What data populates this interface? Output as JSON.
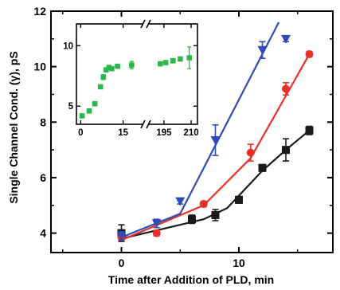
{
  "chart_data": [
    {
      "type": "scatter",
      "title": "",
      "xlabel": "Time after Addition of PLD, min",
      "ylabel": "Single Channel Cond. (γ), pS",
      "xlim": [
        -6,
        18
      ],
      "ylim": [
        3.3,
        12
      ],
      "x_ticks": [
        "0",
        "10"
      ],
      "y_ticks": [
        "4",
        "6",
        "8",
        "10",
        "12"
      ],
      "grid": false,
      "legend": "none",
      "series": [
        {
          "color": "#1a1a1a",
          "marker": "square",
          "points": [
            {
              "x": 0,
              "y": 4.0,
              "err": 0.3
            },
            {
              "x": 6,
              "y": 4.5,
              "err": 0.15
            },
            {
              "x": 8,
              "y": 4.65,
              "err": 0.2
            },
            {
              "x": 10,
              "y": 5.2,
              "err": 0.12
            },
            {
              "x": 12,
              "y": 6.35,
              "err": 0.12
            },
            {
              "x": 14,
              "y": 7.0,
              "err": 0.4
            },
            {
              "x": 16,
              "y": 7.7,
              "err": 0.15
            }
          ],
          "line": [
            [
              0,
              3.8
            ],
            [
              7,
              4.5
            ],
            [
              9,
              4.9
            ],
            [
              12,
              6.25
            ],
            [
              14,
              7.0
            ],
            [
              16,
              7.7
            ]
          ]
        },
        {
          "color": "#e8302b",
          "marker": "circle",
          "points": [
            {
              "x": 0,
              "y": 3.85,
              "err": 0.1
            },
            {
              "x": 3,
              "y": 4.0,
              "err": 0.1
            },
            {
              "x": 7,
              "y": 5.05,
              "err": 0.1
            },
            {
              "x": 11,
              "y": 6.9,
              "err": 0.3
            },
            {
              "x": 14,
              "y": 9.2,
              "err": 0.22
            },
            {
              "x": 16,
              "y": 10.45,
              "err": 0.1
            }
          ],
          "line": [
            [
              0,
              3.75
            ],
            [
              7,
              5.0
            ],
            [
              11,
              6.7
            ],
            [
              16,
              10.45
            ]
          ]
        },
        {
          "color": "#2e4bb8",
          "marker": "triangle-down",
          "points": [
            {
              "x": 0,
              "y": 3.9,
              "err": 0.15
            },
            {
              "x": 3,
              "y": 4.35,
              "err": 0.15
            },
            {
              "x": 5,
              "y": 5.15,
              "err": 0.1
            },
            {
              "x": 8,
              "y": 7.35,
              "err": 0.55
            },
            {
              "x": 12,
              "y": 10.6,
              "err": 0.3
            },
            {
              "x": 14,
              "y": 11.0,
              "err": 0.1
            }
          ],
          "line": [
            [
              0,
              3.85
            ],
            [
              5,
              4.7
            ],
            [
              13.4,
              11.6
            ]
          ]
        }
      ]
    },
    {
      "type": "scatter",
      "title": "",
      "xlabel": "",
      "ylabel": "",
      "x_ticks": [
        "0",
        "15",
        "195",
        "210"
      ],
      "y_ticks": [
        "5",
        "10"
      ],
      "axis_break": true,
      "series": [
        {
          "color": "#2bb84a",
          "marker": "square",
          "points": [
            {
              "x": 0.5,
              "y": 4.2,
              "err": 0.1
            },
            {
              "x": 3,
              "y": 4.6,
              "err": 0.1
            },
            {
              "x": 5,
              "y": 5.2,
              "err": 0.1
            },
            {
              "x": 7,
              "y": 6.6,
              "err": 0.1
            },
            {
              "x": 8,
              "y": 7.4,
              "err": 0.2
            },
            {
              "x": 9,
              "y": 8.0,
              "err": 0.1
            },
            {
              "x": 10,
              "y": 8.2,
              "err": 0.1
            },
            {
              "x": 11,
              "y": 8.1,
              "err": 0.1
            },
            {
              "x": 13,
              "y": 8.3,
              "err": 0.1
            },
            {
              "x": 18,
              "y": 8.4,
              "err": 0.3
            },
            {
              "x": 193,
              "y": 8.5,
              "err": 0.1
            },
            {
              "x": 196,
              "y": 8.6,
              "err": 0.1
            },
            {
              "x": 200,
              "y": 8.75,
              "err": 0.1
            },
            {
              "x": 204,
              "y": 8.9,
              "err": 0.1
            },
            {
              "x": 209,
              "y": 9.0,
              "err": 0.9
            }
          ]
        }
      ]
    }
  ]
}
